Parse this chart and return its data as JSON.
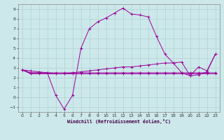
{
  "xlabel": "Windchill (Refroidissement éolien,°C)",
  "bg_color": "#cce8ea",
  "grid_color": "#aacccc",
  "line_color": "#990099",
  "xlim": [
    -0.5,
    23.5
  ],
  "ylim": [
    -1.5,
    9.5
  ],
  "yticks": [
    -1,
    0,
    1,
    2,
    3,
    4,
    5,
    6,
    7,
    8,
    9
  ],
  "xticks": [
    0,
    1,
    2,
    3,
    4,
    5,
    6,
    7,
    8,
    9,
    10,
    11,
    12,
    13,
    14,
    15,
    16,
    17,
    18,
    19,
    20,
    21,
    22,
    23
  ],
  "x": [
    0,
    1,
    2,
    3,
    4,
    5,
    6,
    7,
    8,
    9,
    10,
    11,
    12,
    13,
    14,
    15,
    16,
    17,
    18,
    19,
    20,
    21,
    22,
    23
  ],
  "y_main": [
    2.8,
    2.7,
    2.6,
    2.5,
    0.2,
    -1.2,
    0.2,
    5.0,
    7.0,
    7.7,
    8.1,
    8.6,
    9.1,
    8.5,
    8.4,
    8.2,
    6.2,
    4.4,
    3.5,
    2.5,
    2.2,
    3.1,
    2.7,
    4.4
  ],
  "y_rise": [
    2.8,
    2.5,
    2.5,
    2.5,
    2.4,
    2.4,
    2.5,
    2.6,
    2.7,
    2.8,
    2.9,
    3.0,
    3.1,
    3.1,
    3.2,
    3.3,
    3.4,
    3.5,
    3.5,
    3.6,
    2.2,
    2.3,
    2.6,
    4.4
  ],
  "y_flat": [
    2.8,
    2.4,
    2.4,
    2.4,
    2.4,
    2.4,
    2.4,
    2.4,
    2.4,
    2.4,
    2.4,
    2.4,
    2.4,
    2.4,
    2.4,
    2.4,
    2.4,
    2.4,
    2.4,
    2.4,
    2.4,
    2.4,
    2.4,
    2.4
  ],
  "y_flat2": [
    2.8,
    2.5,
    2.5,
    2.5,
    2.5,
    2.5,
    2.5,
    2.5,
    2.5,
    2.5,
    2.5,
    2.5,
    2.5,
    2.5,
    2.5,
    2.5,
    2.5,
    2.5,
    2.5,
    2.5,
    2.5,
    2.5,
    2.5,
    2.5
  ]
}
